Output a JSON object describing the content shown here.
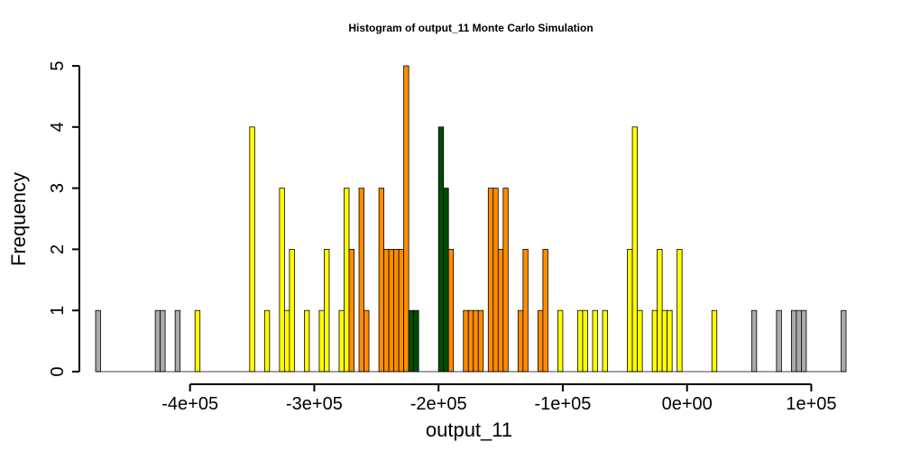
{
  "chart_data": {
    "type": "bar",
    "title": "Histogram of  output_11  Monte Carlo Simulation",
    "xlabel": "output_11",
    "ylabel": "Frequency",
    "xlim": [
      -476000,
      128000
    ],
    "ylim": [
      0,
      5
    ],
    "bin_width": 4000,
    "xticks": [
      {
        "value": -400000,
        "label": "-4e+05"
      },
      {
        "value": -300000,
        "label": "-3e+05"
      },
      {
        "value": -200000,
        "label": "-2e+05"
      },
      {
        "value": -100000,
        "label": "-1e+05"
      },
      {
        "value": 0,
        "label": "0e+00"
      },
      {
        "value": 100000,
        "label": "1e+05"
      }
    ],
    "yticks": [
      {
        "value": 0,
        "label": "0"
      },
      {
        "value": 1,
        "label": "1"
      },
      {
        "value": 2,
        "label": "2"
      },
      {
        "value": 3,
        "label": "3"
      },
      {
        "value": 4,
        "label": "4"
      },
      {
        "value": 5,
        "label": "5"
      }
    ],
    "colors": {
      "gray": "#aaaaaa",
      "yellow": "#ffff00",
      "orange": "#ff8c00",
      "green": "#004d00"
    },
    "bins": [
      {
        "x": -474000,
        "count": 1,
        "color": "gray"
      },
      {
        "x": -426000,
        "count": 1,
        "color": "gray"
      },
      {
        "x": -422000,
        "count": 1,
        "color": "gray"
      },
      {
        "x": -410000,
        "count": 1,
        "color": "gray"
      },
      {
        "x": -394000,
        "count": 1,
        "color": "yellow"
      },
      {
        "x": -350000,
        "count": 4,
        "color": "yellow"
      },
      {
        "x": -338000,
        "count": 1,
        "color": "yellow"
      },
      {
        "x": -326000,
        "count": 3,
        "color": "yellow"
      },
      {
        "x": -322000,
        "count": 1,
        "color": "yellow"
      },
      {
        "x": -318000,
        "count": 2,
        "color": "yellow"
      },
      {
        "x": -306000,
        "count": 1,
        "color": "yellow"
      },
      {
        "x": -294000,
        "count": 1,
        "color": "yellow"
      },
      {
        "x": -290000,
        "count": 2,
        "color": "yellow"
      },
      {
        "x": -278000,
        "count": 1,
        "color": "yellow"
      },
      {
        "x": -274000,
        "count": 3,
        "color": "yellow"
      },
      {
        "x": -270000,
        "count": 2,
        "color": "orange"
      },
      {
        "x": -262000,
        "count": 3,
        "color": "orange"
      },
      {
        "x": -258000,
        "count": 1,
        "color": "orange"
      },
      {
        "x": -246000,
        "count": 3,
        "color": "orange"
      },
      {
        "x": -242000,
        "count": 2,
        "color": "orange"
      },
      {
        "x": -238000,
        "count": 2,
        "color": "orange"
      },
      {
        "x": -234000,
        "count": 2,
        "color": "orange"
      },
      {
        "x": -230000,
        "count": 2,
        "color": "orange"
      },
      {
        "x": -226000,
        "count": 5,
        "color": "orange"
      },
      {
        "x": -222000,
        "count": 1,
        "color": "green"
      },
      {
        "x": -218000,
        "count": 1,
        "color": "green"
      },
      {
        "x": -198000,
        "count": 4,
        "color": "green"
      },
      {
        "x": -194000,
        "count": 3,
        "color": "green"
      },
      {
        "x": -190000,
        "count": 2,
        "color": "orange"
      },
      {
        "x": -178000,
        "count": 1,
        "color": "orange"
      },
      {
        "x": -174000,
        "count": 1,
        "color": "orange"
      },
      {
        "x": -170000,
        "count": 1,
        "color": "orange"
      },
      {
        "x": -166000,
        "count": 1,
        "color": "orange"
      },
      {
        "x": -158000,
        "count": 3,
        "color": "orange"
      },
      {
        "x": -154000,
        "count": 3,
        "color": "orange"
      },
      {
        "x": -150000,
        "count": 2,
        "color": "orange"
      },
      {
        "x": -146000,
        "count": 3,
        "color": "orange"
      },
      {
        "x": -134000,
        "count": 1,
        "color": "orange"
      },
      {
        "x": -130000,
        "count": 2,
        "color": "orange"
      },
      {
        "x": -118000,
        "count": 1,
        "color": "orange"
      },
      {
        "x": -114000,
        "count": 2,
        "color": "orange"
      },
      {
        "x": -102000,
        "count": 1,
        "color": "yellow"
      },
      {
        "x": -86000,
        "count": 1,
        "color": "yellow"
      },
      {
        "x": -82000,
        "count": 1,
        "color": "yellow"
      },
      {
        "x": -74000,
        "count": 1,
        "color": "yellow"
      },
      {
        "x": -66000,
        "count": 1,
        "color": "yellow"
      },
      {
        "x": -46000,
        "count": 2,
        "color": "yellow"
      },
      {
        "x": -42000,
        "count": 4,
        "color": "yellow"
      },
      {
        "x": -38000,
        "count": 1,
        "color": "yellow"
      },
      {
        "x": -26000,
        "count": 1,
        "color": "yellow"
      },
      {
        "x": -22000,
        "count": 2,
        "color": "yellow"
      },
      {
        "x": -18000,
        "count": 1,
        "color": "yellow"
      },
      {
        "x": -14000,
        "count": 1,
        "color": "yellow"
      },
      {
        "x": -6000,
        "count": 2,
        "color": "yellow"
      },
      {
        "x": 22000,
        "count": 1,
        "color": "yellow"
      },
      {
        "x": 54000,
        "count": 1,
        "color": "gray"
      },
      {
        "x": 74000,
        "count": 1,
        "color": "gray"
      },
      {
        "x": 86000,
        "count": 1,
        "color": "gray"
      },
      {
        "x": 90000,
        "count": 1,
        "color": "gray"
      },
      {
        "x": 94000,
        "count": 1,
        "color": "gray"
      },
      {
        "x": 126000,
        "count": 1,
        "color": "gray"
      }
    ]
  }
}
